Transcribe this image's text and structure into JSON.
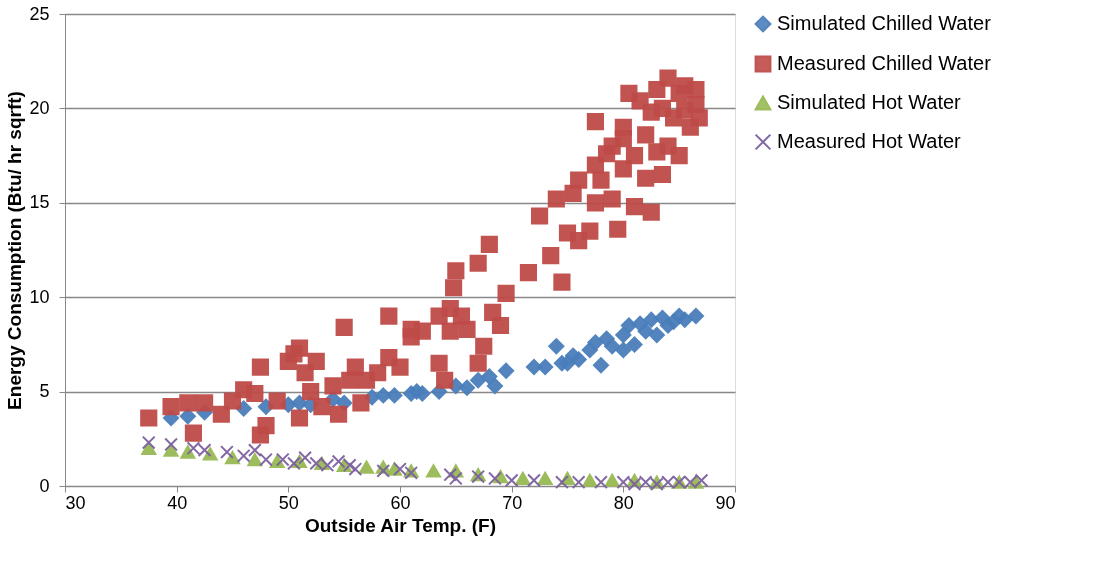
{
  "chart_data": {
    "type": "scatter",
    "xlabel": "Outside Air Temp. (F)",
    "ylabel": "Energy Consumption (Btu/ hr sqrft)",
    "xlim": [
      30,
      90
    ],
    "xticks": [
      30,
      40,
      50,
      60,
      70,
      80,
      90
    ],
    "ylim": [
      0,
      25
    ],
    "yticks": [
      0,
      5,
      10,
      15,
      20,
      25
    ],
    "grid": "y",
    "legend": "right",
    "series": [
      {
        "name": "Simulated Chilled Water",
        "color": "#4a7ebb",
        "marker": "diamond",
        "x": [
          39.5,
          41,
          42.5,
          46,
          48,
          50,
          51,
          52,
          54,
          55,
          57.5,
          58.5,
          59.5,
          61,
          61.5,
          62,
          63.5,
          65,
          66,
          67,
          68,
          68.5,
          69.5,
          72,
          73,
          74,
          74.5,
          75,
          75.5,
          76,
          77,
          77.5,
          78,
          78.5,
          79,
          80,
          80,
          80.5,
          81,
          81.5,
          82,
          82.5,
          83,
          83.5,
          84,
          84.5,
          85,
          85.5,
          86.5
        ],
        "values": [
          3.6,
          3.7,
          3.9,
          4.1,
          4.2,
          4.3,
          4.4,
          4.3,
          4.6,
          4.4,
          4.7,
          4.8,
          4.8,
          4.9,
          5.0,
          4.9,
          5.0,
          5.3,
          5.2,
          5.6,
          5.8,
          5.3,
          6.1,
          6.3,
          6.3,
          7.4,
          6.5,
          6.5,
          6.9,
          6.7,
          7.2,
          7.6,
          6.4,
          7.8,
          7.4,
          8.0,
          7.2,
          8.5,
          7.5,
          8.6,
          8.2,
          8.8,
          8.0,
          8.9,
          8.5,
          8.7,
          9.0,
          8.8,
          9.0
        ]
      },
      {
        "name": "Measured Chilled Water",
        "color": "#be4b48",
        "marker": "square",
        "x": [
          37.5,
          39.5,
          41,
          42.5,
          41.5,
          44,
          45,
          46,
          47,
          47.5,
          48,
          47.5,
          49,
          50,
          50.5,
          51,
          51.5,
          51,
          52,
          52.5,
          53,
          54,
          54.5,
          55,
          55.5,
          56,
          56.5,
          57,
          58,
          59,
          59,
          60,
          61,
          61,
          62,
          63.5,
          63.5,
          64,
          64.5,
          64.8,
          65,
          64.5,
          65.5,
          66,
          67,
          67,
          67.5,
          68,
          68.3,
          69,
          69.5,
          71.5,
          72.5,
          73.5,
          74,
          74.5,
          75,
          75.5,
          76,
          76,
          77,
          77.5,
          77.5,
          77.5,
          78,
          78.5,
          79,
          79,
          79.5,
          80,
          80,
          80,
          80.5,
          81,
          81,
          81.5,
          82,
          82,
          82.5,
          82.5,
          83,
          83,
          83.5,
          83.5,
          84,
          84,
          84.5,
          85,
          85,
          85.5,
          85.5,
          86,
          86.5,
          86.5,
          86.8
        ],
        "values": [
          3.6,
          4.2,
          4.4,
          4.4,
          2.8,
          3.8,
          4.5,
          5.1,
          4.9,
          6.3,
          3.2,
          2.7,
          4.5,
          6.6,
          7.0,
          7.3,
          6.0,
          3.6,
          5.0,
          6.6,
          4.2,
          5.3,
          3.8,
          8.4,
          5.6,
          6.3,
          4.4,
          5.6,
          6.0,
          6.8,
          9.0,
          6.3,
          8.3,
          7.9,
          8.2,
          6.5,
          9.0,
          5.6,
          9.4,
          10.5,
          11.4,
          8.2,
          9.0,
          8.3,
          6.5,
          11.8,
          7.4,
          12.8,
          9.2,
          8.5,
          10.2,
          11.3,
          14.3,
          12.2,
          15.2,
          10.8,
          13.4,
          15.5,
          16.2,
          13.0,
          13.5,
          15.0,
          17.0,
          19.3,
          16.2,
          17.6,
          18.0,
          15.2,
          13.6,
          16.8,
          18.4,
          19.0,
          20.8,
          17.5,
          14.8,
          20.4,
          18.6,
          16.3,
          19.8,
          14.5,
          21.0,
          17.7,
          20.0,
          16.5,
          21.6,
          18.0,
          19.5,
          20.8,
          17.5,
          19.9,
          21.2,
          19.0,
          20.2,
          21.0,
          19.5
        ]
      },
      {
        "name": "Simulated Hot Water",
        "color": "#98b954",
        "marker": "triangle",
        "x": [
          37.5,
          39.5,
          41,
          43,
          45,
          47,
          49,
          51,
          53,
          55,
          57,
          58.5,
          59.5,
          61,
          63,
          65,
          67,
          69,
          71,
          73,
          75,
          77,
          79,
          81,
          83,
          85,
          86.5
        ],
        "values": [
          2.0,
          1.9,
          1.8,
          1.7,
          1.5,
          1.4,
          1.3,
          1.3,
          1.2,
          1.1,
          1.0,
          1.0,
          0.9,
          0.8,
          0.8,
          0.8,
          0.6,
          0.5,
          0.4,
          0.4,
          0.4,
          0.3,
          0.3,
          0.3,
          0.2,
          0.2,
          0.2
        ]
      },
      {
        "name": "Measured Hot Water",
        "color": "#7d60a0",
        "marker": "cross",
        "x": [
          37.5,
          39.5,
          41.5,
          42.5,
          44.5,
          46,
          47,
          48,
          49.5,
          50.5,
          51.5,
          52.5,
          53.5,
          54.5,
          55.5,
          56,
          58.5,
          60,
          61,
          64.5,
          65,
          67,
          68.5,
          70,
          72,
          74.5,
          76,
          78,
          80,
          81,
          82,
          83,
          84,
          85,
          86,
          87
        ],
        "values": [
          2.3,
          2.2,
          2.0,
          1.9,
          1.8,
          1.6,
          1.9,
          1.4,
          1.4,
          1.2,
          1.5,
          1.2,
          1.1,
          1.3,
          1.1,
          0.9,
          0.8,
          0.9,
          0.7,
          0.6,
          0.4,
          0.5,
          0.4,
          0.3,
          0.3,
          0.2,
          0.2,
          0.2,
          0.2,
          0.1,
          0.2,
          0.1,
          0.2,
          0.2,
          0.2,
          0.3
        ]
      }
    ]
  }
}
